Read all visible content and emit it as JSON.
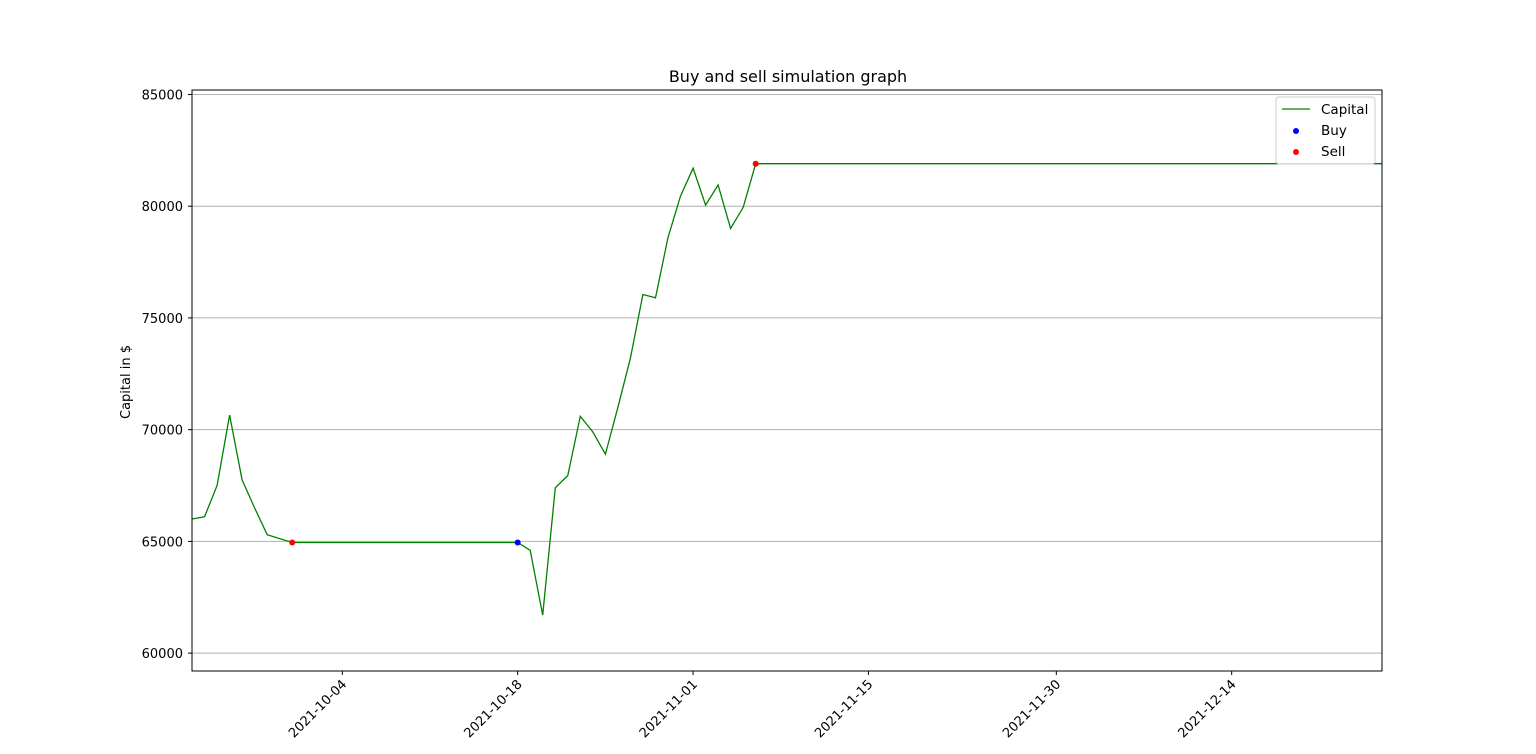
{
  "chart_data": {
    "type": "line",
    "title": "Buy and sell simulation graph",
    "xlabel": "",
    "ylabel": "Capital in $",
    "xlim": [
      "2021-09-22",
      "2021-12-26"
    ],
    "ylim": [
      59200,
      85200
    ],
    "grid": "y",
    "legend": "top-right",
    "xticks": [
      "2021-10-04",
      "2021-10-18",
      "2021-11-01",
      "2021-11-15",
      "2021-11-30",
      "2021-12-14"
    ],
    "yticks": [
      60000,
      65000,
      70000,
      75000,
      80000,
      85000
    ],
    "series": [
      {
        "name": "Capital",
        "kind": "line",
        "color": "#008000",
        "points": [
          [
            "2021-09-22",
            66000
          ],
          [
            "2021-09-23",
            66100
          ],
          [
            "2021-09-24",
            67500
          ],
          [
            "2021-09-25",
            70650
          ],
          [
            "2021-09-26",
            67750
          ],
          [
            "2021-09-27",
            66500
          ],
          [
            "2021-09-28",
            65300
          ],
          [
            "2021-09-30",
            64950
          ],
          [
            "2021-10-18",
            64950
          ],
          [
            "2021-10-19",
            64600
          ],
          [
            "2021-10-20",
            61700
          ],
          [
            "2021-10-21",
            67400
          ],
          [
            "2021-10-22",
            67950
          ],
          [
            "2021-10-23",
            70600
          ],
          [
            "2021-10-24",
            69900
          ],
          [
            "2021-10-25",
            68900
          ],
          [
            "2021-10-26",
            71000
          ],
          [
            "2021-10-27",
            73200
          ],
          [
            "2021-10-28",
            76050
          ],
          [
            "2021-10-29",
            75900
          ],
          [
            "2021-10-30",
            78600
          ],
          [
            "2021-10-31",
            80450
          ],
          [
            "2021-11-01",
            81700
          ],
          [
            "2021-11-02",
            80050
          ],
          [
            "2021-11-03",
            80950
          ],
          [
            "2021-11-04",
            79000
          ],
          [
            "2021-11-05",
            79950
          ],
          [
            "2021-11-06",
            81900
          ],
          [
            "2021-12-26",
            81900
          ]
        ]
      },
      {
        "name": "Buy",
        "kind": "scatter",
        "color": "#0000ff",
        "points": [
          [
            "2021-10-18",
            64950
          ]
        ]
      },
      {
        "name": "Sell",
        "kind": "scatter",
        "color": "#ff0000",
        "points": [
          [
            "2021-09-30",
            64950
          ],
          [
            "2021-11-06",
            81900
          ]
        ]
      }
    ]
  }
}
